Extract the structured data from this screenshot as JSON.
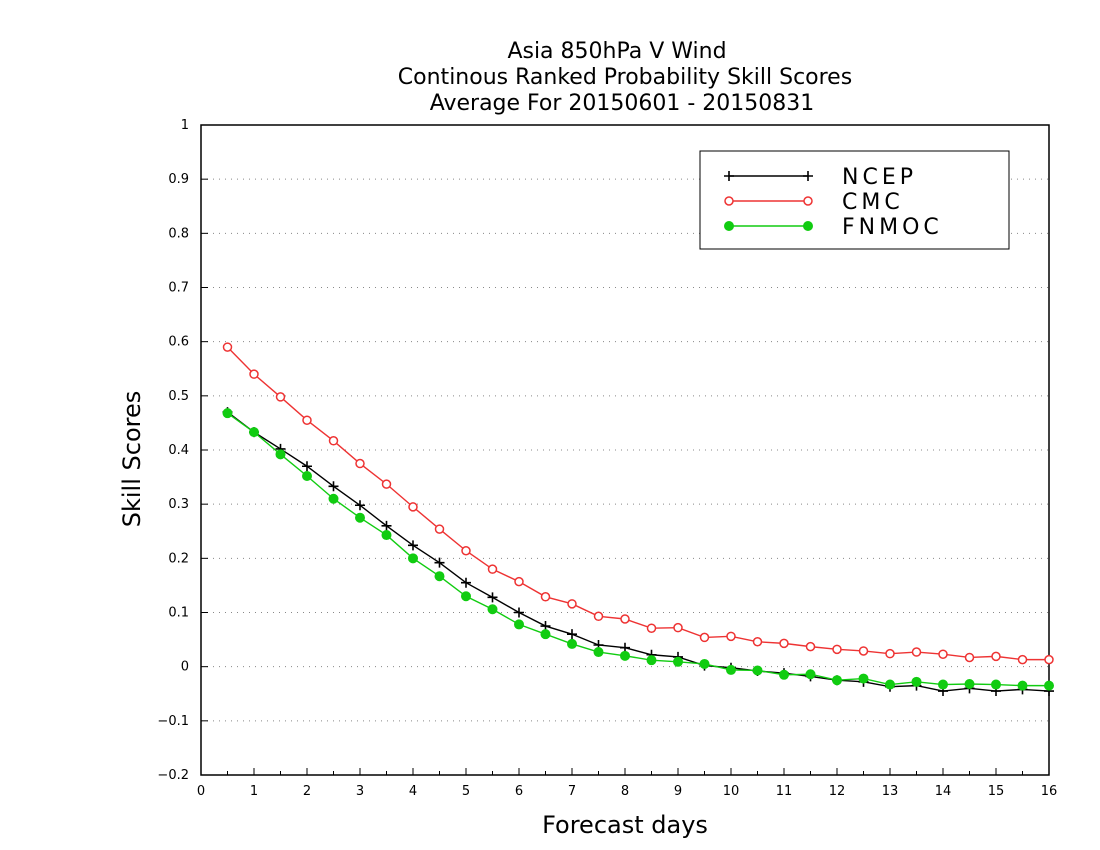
{
  "chart_data": {
    "type": "line",
    "title": [
      "Asia 850hPa V Wind",
      "Continous Ranked Probability Skill Scores",
      "Average For 20150601 - 20150831"
    ],
    "xlabel": "Forecast days",
    "ylabel": "Skill Scores",
    "xlim": [
      0,
      16
    ],
    "ylim": [
      -0.2,
      1
    ],
    "xticks": [
      "0",
      "1",
      "2",
      "3",
      "4",
      "5",
      "6",
      "7",
      "8",
      "9",
      "10",
      "11",
      "12",
      "13",
      "14",
      "15",
      "16"
    ],
    "yticks": [
      "−0.2",
      "−0.1",
      "0",
      "0.1",
      "0.2",
      "0.3",
      "0.4",
      "0.5",
      "0.6",
      "0.7",
      "0.8",
      "0.9",
      "1"
    ],
    "ytick_values": [
      -0.2,
      -0.1,
      0,
      0.1,
      0.2,
      0.3,
      0.4,
      0.5,
      0.6,
      0.7,
      0.8,
      0.9,
      1
    ],
    "grid": "horizontal dotted",
    "legend_position": "top-right",
    "x": [
      0.5,
      1,
      1.5,
      2,
      2.5,
      3,
      3.5,
      4,
      4.5,
      5,
      5.5,
      6,
      6.5,
      7,
      7.5,
      8,
      8.5,
      9,
      9.5,
      10,
      10.5,
      11,
      11.5,
      12,
      12.5,
      13,
      13.5,
      14,
      14.5,
      15,
      15.5,
      16
    ],
    "series": [
      {
        "name": "NCEP",
        "color": "#000000",
        "marker": "plus",
        "values": [
          0.47,
          0.433,
          0.402,
          0.37,
          0.333,
          0.298,
          0.26,
          0.224,
          0.192,
          0.155,
          0.128,
          0.1,
          0.075,
          0.06,
          0.04,
          0.035,
          0.022,
          0.018,
          0.002,
          -0.002,
          -0.008,
          -0.012,
          -0.018,
          -0.025,
          -0.028,
          -0.037,
          -0.035,
          -0.045,
          -0.04,
          -0.045,
          -0.042,
          -0.045
        ]
      },
      {
        "name": "CMC",
        "color": "#ee3333",
        "marker": "open-circle",
        "values": [
          0.59,
          0.54,
          0.498,
          0.455,
          0.417,
          0.375,
          0.337,
          0.295,
          0.254,
          0.214,
          0.18,
          0.157,
          0.129,
          0.116,
          0.093,
          0.088,
          0.071,
          0.072,
          0.054,
          0.056,
          0.046,
          0.043,
          0.037,
          0.032,
          0.029,
          0.024,
          0.027,
          0.023,
          0.017,
          0.019,
          0.013,
          0.013
        ]
      },
      {
        "name": "FNMOC",
        "color": "#11cc11",
        "marker": "filled-circle",
        "values": [
          0.468,
          0.433,
          0.392,
          0.352,
          0.31,
          0.275,
          0.243,
          0.2,
          0.167,
          0.13,
          0.106,
          0.078,
          0.06,
          0.042,
          0.027,
          0.02,
          0.012,
          0.009,
          0.005,
          -0.006,
          -0.007,
          -0.015,
          -0.014,
          -0.025,
          -0.022,
          -0.033,
          -0.028,
          -0.033,
          -0.032,
          -0.033,
          -0.035,
          -0.035
        ]
      }
    ]
  }
}
